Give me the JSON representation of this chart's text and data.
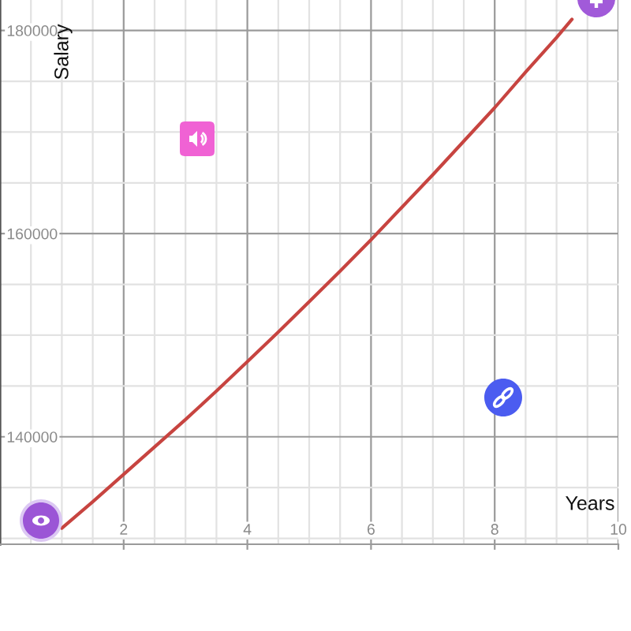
{
  "chart_data": {
    "type": "line",
    "xlabel": "Years",
    "ylabel": "Salary",
    "x": [
      1,
      1.5,
      2,
      2.5,
      3,
      3.5,
      4,
      4.5,
      5,
      5.5,
      6,
      6.5,
      7,
      7.5,
      8,
      8.5,
      9,
      9.25
    ],
    "series": [
      {
        "color": "#c74440",
        "values": [
          131000,
          133600,
          136300,
          139000,
          141700,
          144500,
          147400,
          150300,
          153300,
          156300,
          159400,
          162600,
          165800,
          169100,
          172400,
          175900,
          179300,
          181100
        ]
      }
    ],
    "xlim": [
      0,
      10
    ],
    "ylim": [
      129420,
      183000
    ],
    "xticks": [
      2,
      4,
      6,
      8,
      10
    ],
    "yticks": [
      140000,
      160000,
      180000
    ],
    "grid": true,
    "line_style": "solid"
  }
}
